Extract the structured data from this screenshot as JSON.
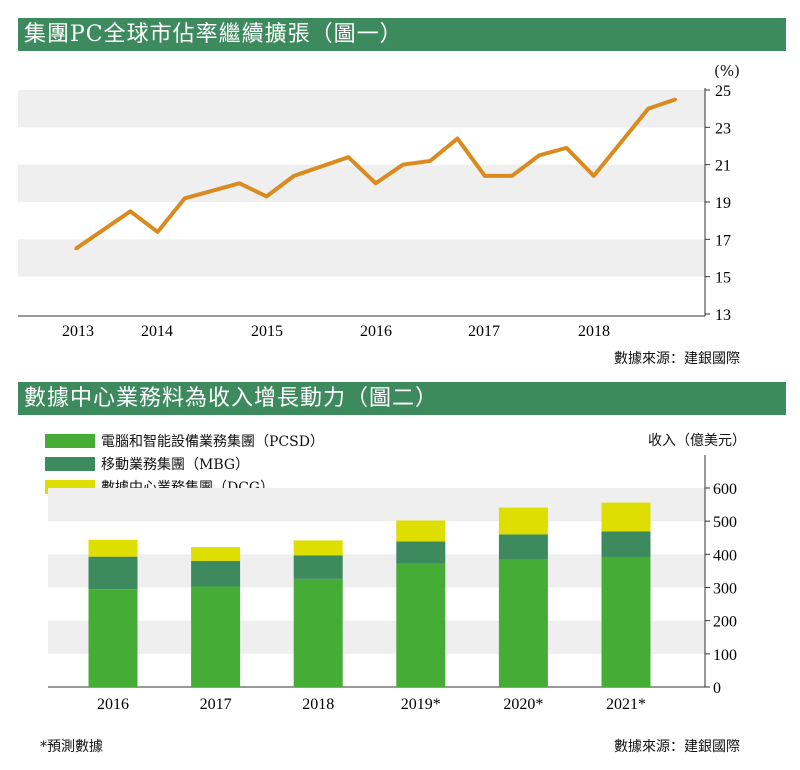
{
  "chart_data": [
    {
      "type": "line",
      "title": "集團PC全球市佔率繼續擴張（圖一）",
      "ylabel": "(%)",
      "xlabel": "",
      "ylim": [
        13,
        25
      ],
      "yticks": [
        13,
        15,
        17,
        19,
        21,
        23,
        25
      ],
      "xticks": [
        "2013",
        "2014",
        "2015",
        "2016",
        "2017",
        "2018"
      ],
      "grid": "alternating horizontal bands",
      "color": "#d98b1f",
      "series": [
        {
          "name": "market share",
          "x": [
            2013.25,
            2013.75,
            2014.0,
            2014.25,
            2014.75,
            2015.0,
            2015.25,
            2015.75,
            2016.0,
            2016.25,
            2016.5,
            2016.75,
            2017.0,
            2017.25,
            2017.5,
            2017.75,
            2018.0,
            2018.5,
            2018.75
          ],
          "values": [
            16.5,
            18.5,
            17.4,
            19.2,
            20.0,
            19.3,
            20.4,
            21.4,
            20.0,
            21.0,
            21.2,
            22.4,
            20.4,
            20.4,
            21.5,
            21.9,
            20.4,
            24.0,
            24.5
          ]
        }
      ],
      "source": "數據來源：建銀國際"
    },
    {
      "type": "bar",
      "stacked": true,
      "title": "數據中心業務料為收入增長動力（圖二）",
      "ylabel": "收入（億美元）",
      "ylim": [
        0,
        600
      ],
      "yticks": [
        0,
        100,
        200,
        300,
        400,
        500,
        600
      ],
      "categories": [
        "2016",
        "2017",
        "2018",
        "2019*",
        "2020*",
        "2021*"
      ],
      "legend": "top-left",
      "series": [
        {
          "name": "電腦和智能設備業務集團（PCSD）",
          "color": "#45ad35",
          "values": [
            295,
            303,
            326,
            372,
            386,
            392
          ]
        },
        {
          "name": "移動業務集團（MBG）",
          "color": "#3e8a5f",
          "values": [
            98,
            77,
            71,
            67,
            74,
            77
          ]
        },
        {
          "name": "數據中心業務集團（DCG）",
          "color": "#dede00",
          "values": [
            51,
            42,
            45,
            63,
            81,
            87
          ]
        }
      ],
      "footnote": "*預測數據",
      "source": "數據來源：建銀國際"
    }
  ]
}
